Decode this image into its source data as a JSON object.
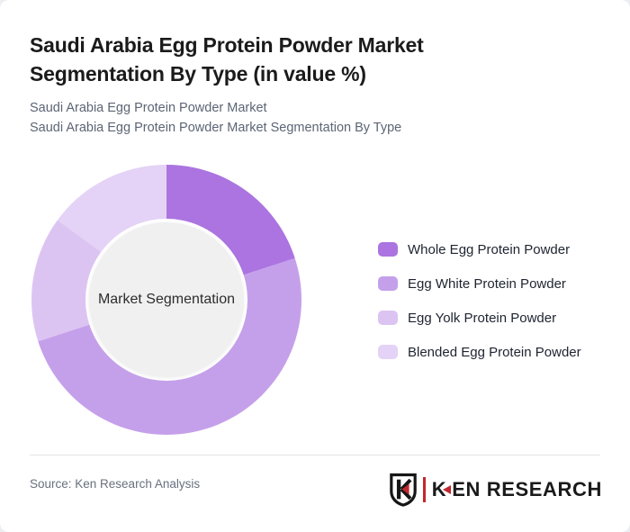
{
  "header": {
    "title_full": "Saudi Arabia Egg Protein Powder Market Segmentation By Type (in value %)",
    "title_lines": [
      "Saudi Arabia Egg Protein Powder Market",
      "Segmentation By Type (in value %)"
    ],
    "subtitle_lines": [
      "Saudi Arabia Egg Protein Powder Market",
      "Saudi Arabia Egg Protein Powder Market Segmentation By Type"
    ]
  },
  "chart_data": {
    "type": "pie",
    "style": "donut",
    "title": "Saudi Arabia Egg Protein Powder Market Segmentation By Type (in value %)",
    "unit": "value %",
    "center_label": "Market Segmentation",
    "legend_position": "right",
    "direction": "clockwise",
    "start_angle_deg": 0,
    "hole_fill": "#f0f0f0",
    "segments": [
      {
        "label": "Whole Egg Protein Powder",
        "value": 20,
        "color": "#ab74e0"
      },
      {
        "label": "Egg White Protein Powder",
        "value": 50,
        "color": "#c5a0ea"
      },
      {
        "label": "Egg Yolk Protein Powder",
        "value": 15,
        "color": "#dcc4f2"
      },
      {
        "label": "Blended Egg Protein Powder",
        "value": 15,
        "color": "#e4d3f6"
      }
    ]
  },
  "footer": {
    "source_text": "Source: Ken Research Analysis",
    "logo": {
      "k": "K",
      "rest": "EN RESEARCH",
      "red": "#c1272d",
      "black": "#1a1a1a"
    }
  }
}
